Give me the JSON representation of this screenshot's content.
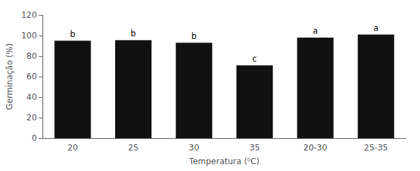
{
  "chart_data": {
    "type": "bar",
    "categories": [
      "20",
      "25",
      "30",
      "35",
      "20-30",
      "25-35"
    ],
    "values": [
      95,
      95.5,
      93,
      71,
      98,
      101
    ],
    "annotations": [
      "b",
      "b",
      "b",
      "c",
      "a",
      "a"
    ],
    "color": "#111111",
    "xlabel": "Temperatura (⁰C)",
    "ylabel": "Germinação (%)",
    "ylim": [
      0,
      120
    ],
    "yticks": [
      0,
      20,
      40,
      60,
      80,
      100,
      120
    ],
    "grid": false
  }
}
